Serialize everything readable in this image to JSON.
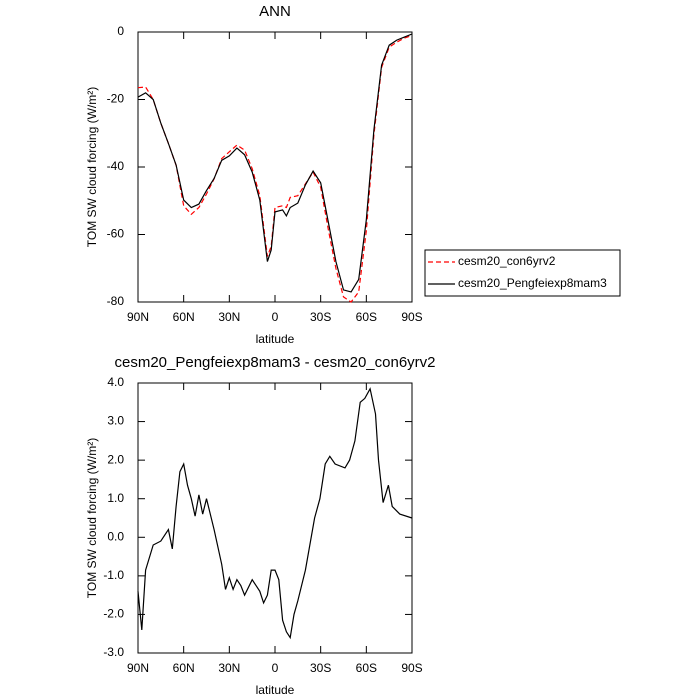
{
  "chart_data": [
    {
      "type": "line",
      "title": "ANN",
      "x_label": "latitude",
      "y_label": "TOM SW cloud forcing (W/m²)",
      "x": [
        90,
        85,
        80,
        75,
        70,
        65,
        60,
        55,
        50,
        45,
        40,
        35,
        30,
        25,
        20,
        15,
        10,
        5,
        2.5,
        0,
        -5,
        -7.5,
        -10,
        -15,
        -20,
        -25,
        -30,
        -35,
        -40,
        -45,
        -50,
        -55,
        -60,
        -65,
        -70,
        -75,
        -80,
        -85,
        -90
      ],
      "series": [
        {
          "name": "cesm20_con6yrv2",
          "color": "#ff0000",
          "dash": true,
          "values": [
            -16.5,
            -16.3,
            -20,
            -27,
            -33,
            -39.5,
            -51.5,
            -54,
            -52,
            -48,
            -43.5,
            -37.5,
            -35.5,
            -33.5,
            -35,
            -40.5,
            -48.5,
            -66.5,
            -63.5,
            -52,
            -51.5,
            -52,
            -49,
            -48.5,
            -45,
            -41.5,
            -46,
            -58.5,
            -70,
            -78.5,
            -80,
            -77,
            -59,
            -30.5,
            -10.5,
            -4.5,
            -3,
            -1.8,
            -1
          ]
        },
        {
          "name": "cesm20_Pengfeiexp8mam3",
          "color": "#000000",
          "dash": false,
          "values": [
            -19.3,
            -18,
            -20,
            -27,
            -33,
            -39.4,
            -49.8,
            -52,
            -51,
            -47,
            -43.4,
            -38,
            -36.7,
            -34.4,
            -36.4,
            -41.5,
            -49.8,
            -68,
            -64.6,
            -53.3,
            -52.7,
            -54.5,
            -52,
            -50.7,
            -45.3,
            -41.2,
            -44.7,
            -56.3,
            -68,
            -76.4,
            -77,
            -73.3,
            -55.7,
            -29,
            -9.8,
            -3.9,
            -2.4,
            -1.5,
            -0.6
          ]
        }
      ],
      "xlim": [
        90,
        -90
      ],
      "xticks": [
        {
          "value": 90,
          "label": "90N"
        },
        {
          "value": 60,
          "label": "60N"
        },
        {
          "value": 30,
          "label": "30N"
        },
        0,
        {
          "value": -30,
          "label": "30S"
        },
        {
          "value": -60,
          "label": "60S"
        },
        {
          "value": -90,
          "label": "90S"
        }
      ],
      "ylim": [
        -80,
        0
      ],
      "yticks": [
        0,
        -20,
        -40,
        -60,
        -80
      ],
      "legend": "right"
    },
    {
      "type": "line",
      "title": "cesm20_Pengfeiexp8mam3 - cesm20_con6yrv2",
      "x_label": "latitude",
      "y_label": "TOM SW cloud forcing (W/m²)",
      "x": [
        90,
        87.5,
        85,
        80,
        75,
        70,
        67.5,
        65,
        62.5,
        60,
        57.5,
        55,
        52.5,
        50,
        47.5,
        45,
        42.5,
        40,
        35,
        32.5,
        30,
        27.5,
        25,
        22.5,
        20,
        15,
        10,
        7.5,
        5,
        2.5,
        0,
        -2.5,
        -5,
        -7.5,
        -10,
        -12.5,
        -15,
        -20,
        -26,
        -29.5,
        -33,
        -36,
        -39.5,
        -46,
        -49,
        -52.5,
        -56,
        -59,
        -62.5,
        -66,
        -68,
        -71,
        -74.5,
        -77,
        -82,
        -90
      ],
      "series": [
        {
          "name": "cesm20_Pengfeiexp8mam3 - cesm20_con6yrv2",
          "color": "#000000",
          "dash": false,
          "values": [
            -1.4,
            -2.4,
            -0.85,
            -0.2,
            -0.1,
            0.2,
            -0.3,
            0.8,
            1.7,
            1.9,
            1.35,
            1.0,
            0.55,
            1.1,
            0.6,
            1.0,
            0.6,
            0.2,
            -0.7,
            -1.35,
            -1.05,
            -1.35,
            -1.1,
            -1.25,
            -1.5,
            -1.1,
            -1.4,
            -1.7,
            -1.5,
            -0.85,
            -0.85,
            -1.1,
            -2.15,
            -2.45,
            -2.6,
            -2.0,
            -1.65,
            -0.85,
            0.5,
            1.0,
            1.9,
            2.1,
            1.9,
            1.8,
            2.0,
            2.5,
            3.5,
            3.6,
            3.85,
            3.2,
            2.0,
            0.9,
            1.35,
            0.8,
            0.6,
            0.5
          ]
        }
      ],
      "xlim": [
        90,
        -90
      ],
      "xticks": [
        {
          "value": 90,
          "label": "90N"
        },
        {
          "value": 60,
          "label": "60N"
        },
        {
          "value": 30,
          "label": "30N"
        },
        0,
        {
          "value": -30,
          "label": "30S"
        },
        {
          "value": -60,
          "label": "60S"
        },
        {
          "value": -90,
          "label": "90S"
        }
      ],
      "ylim": [
        -3,
        4
      ],
      "yticks": [
        {
          "value": 4,
          "label": "4.0"
        },
        {
          "value": 3,
          "label": "3.0"
        },
        {
          "value": 2,
          "label": "2.0"
        },
        {
          "value": 1,
          "label": "1.0"
        },
        {
          "value": 0,
          "label": "0.0"
        },
        {
          "value": -1,
          "label": "-1.0"
        },
        {
          "value": -2,
          "label": "-2.0"
        },
        {
          "value": -3,
          "label": "-3.0"
        }
      ]
    }
  ]
}
